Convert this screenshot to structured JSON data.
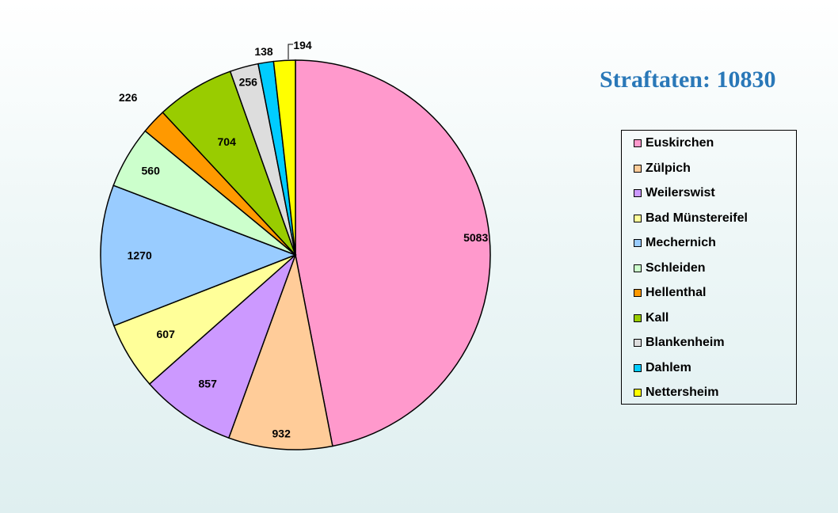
{
  "chart_data": {
    "type": "pie",
    "title": "Straftaten: 10830",
    "legend_position": "right",
    "slices": [
      {
        "name": "Euskirchen",
        "value": 5083,
        "color": "#ff99cc"
      },
      {
        "name": "Zülpich",
        "value": 932,
        "color": "#ffcc99"
      },
      {
        "name": "Weilerswist",
        "value": 857,
        "color": "#cc99ff"
      },
      {
        "name": "Bad Münstereifel",
        "value": 607,
        "color": "#ffff99"
      },
      {
        "name": "Mechernich",
        "value": 1270,
        "color": "#99ccff"
      },
      {
        "name": "Schleiden",
        "value": 560,
        "color": "#ccffcc"
      },
      {
        "name": "Hellenthal",
        "value": 226,
        "color": "#ff9900"
      },
      {
        "name": "Kall",
        "value": 704,
        "color": "#99cc00"
      },
      {
        "name": "Blankenheim",
        "value": 256,
        "color": "#dddddd"
      },
      {
        "name": "Dahlem",
        "value": 138,
        "color": "#00ccff"
      },
      {
        "name": "Nettersheim",
        "value": 194,
        "color": "#ffff00"
      }
    ]
  }
}
